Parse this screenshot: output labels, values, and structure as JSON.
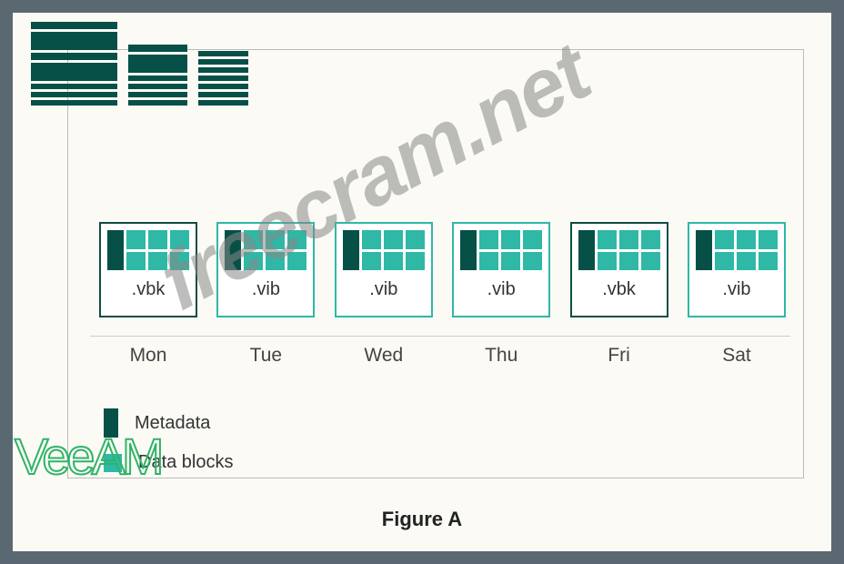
{
  "figure_caption": "Figure A",
  "colors": {
    "background_outer": "#5a6872",
    "background_inner": "#fbfaf5",
    "metadata": "#065047",
    "datablock": "#2fb8a6",
    "vbk_border": "#0e4d44",
    "vib_border": "#2fb8a6",
    "day_text": "#444444",
    "ext_text": "#333333",
    "hr_line": "#cccccc",
    "watermark_gray": "#888888",
    "watermark_green": "#2fb368"
  },
  "stacks": [
    {
      "size": "big",
      "bars": [
        "h1",
        "h2",
        "h1",
        "h2",
        "h3",
        "h3",
        "h3"
      ]
    },
    {
      "size": "med",
      "bars": [
        "h1",
        "h2",
        "h3",
        "h3",
        "h3",
        "h3"
      ]
    },
    {
      "size": "small",
      "bars": [
        "h3",
        "h3",
        "h3",
        "h3",
        "h3",
        "h3",
        "h3"
      ]
    }
  ],
  "backups": [
    {
      "ext": ".vbk",
      "type": "vbk",
      "day": "Mon"
    },
    {
      "ext": ".vib",
      "type": "vib",
      "day": "Tue"
    },
    {
      "ext": ".vib",
      "type": "vib",
      "day": "Wed"
    },
    {
      "ext": ".vib",
      "type": "vib",
      "day": "Thu"
    },
    {
      "ext": ".vbk",
      "type": "vbk",
      "day": "Fri"
    },
    {
      "ext": ".vib",
      "type": "vib",
      "day": "Sat"
    }
  ],
  "legend": {
    "metadata_label": "Metadata",
    "datablocks_label": "Data blocks"
  },
  "watermarks": {
    "freecram": "freecram.net",
    "veeam": "VeeAM"
  }
}
